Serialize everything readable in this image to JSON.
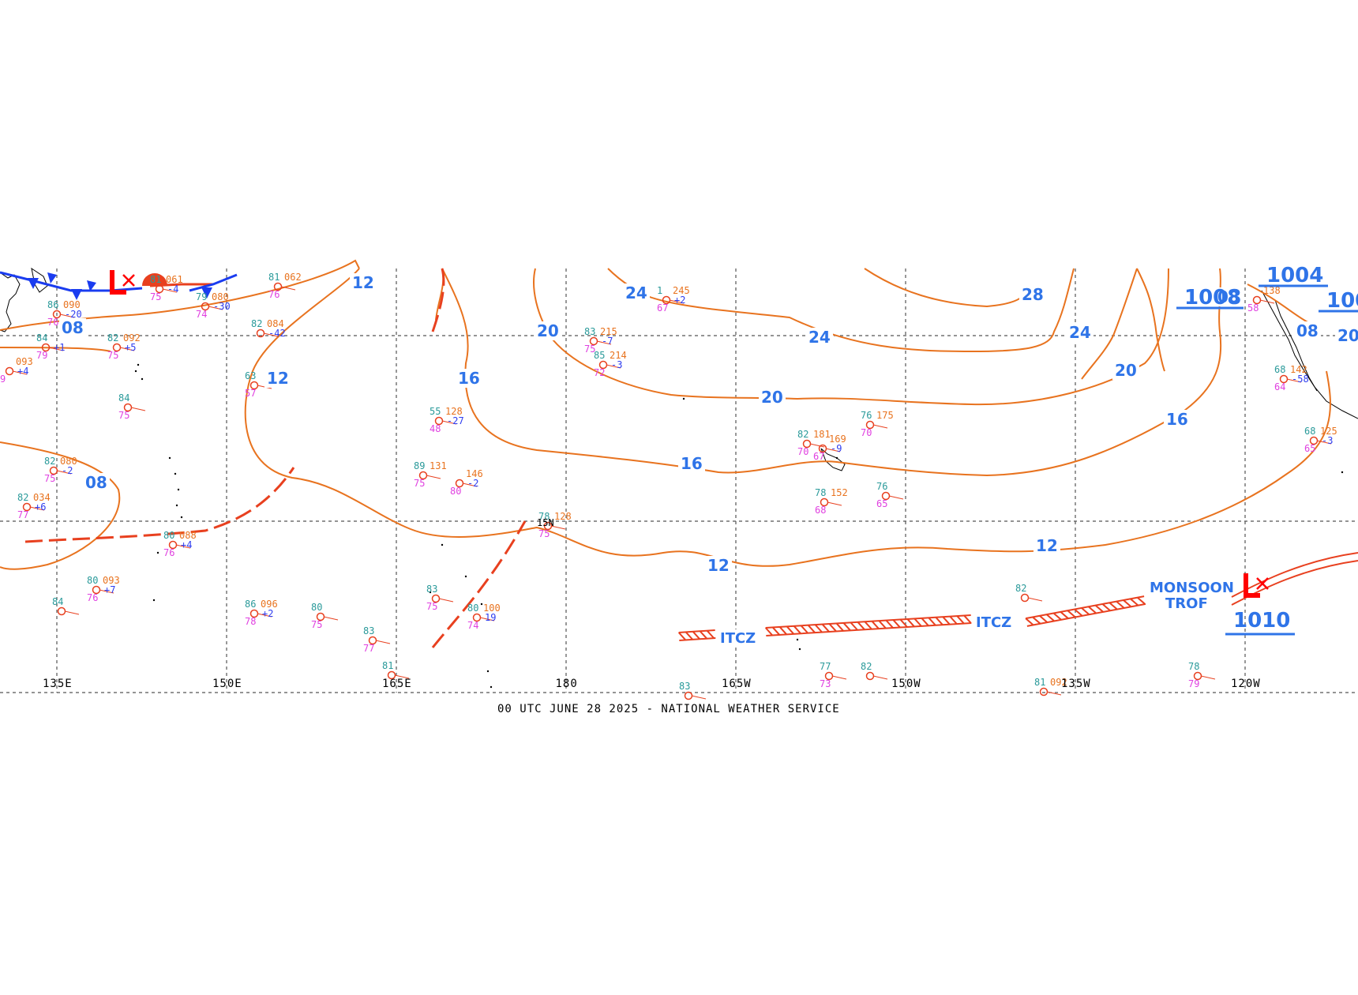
{
  "colors": {
    "isobar": "#e8731f",
    "isobar_label": "#2f74e8",
    "frontal": "#e8401f",
    "cold_front": "#1a3cf0",
    "low_symbol": "#ff0000",
    "grid": "#555555",
    "temp": "#2a9a9a",
    "pressure_obs": "#e8731f",
    "dewpoint": "#e040e0",
    "tendency": "#2d3cf0",
    "cloud": "#000000"
  },
  "map": {
    "longitude_labels": [
      "135E",
      "150E",
      "165E",
      "180",
      "165W",
      "150W",
      "135W",
      "120W"
    ],
    "isobar_labels": [
      "12",
      "08",
      "12",
      "08",
      "16",
      "20",
      "24",
      "24",
      "28",
      "20",
      "16",
      "24",
      "20",
      "16",
      "12",
      "12",
      "08",
      "08",
      "20"
    ],
    "pressure_centers": [
      "1008",
      "1004",
      "100",
      "1010"
    ],
    "features": [
      "ITCZ",
      "ITCZ",
      "MONSOON",
      "TROF"
    ],
    "lat_marker": "15N",
    "low_marker_icon": "low-pressure-icon"
  },
  "stations": [
    {
      "t": "86",
      "p": "090",
      "d": "76",
      "tend": "-20"
    },
    {
      "t": "84",
      "p": "",
      "d": "79",
      "tend": "+1"
    },
    {
      "t": "82",
      "p": "092",
      "d": "75",
      "tend": "+5"
    },
    {
      "t": "81",
      "p": "061",
      "d": "75",
      "tend": "-4"
    },
    {
      "t": "79",
      "p": "080",
      "d": "74",
      "tend": "-30"
    },
    {
      "t": "81",
      "p": "062",
      "d": "76",
      "tend": ""
    },
    {
      "t": "82",
      "p": "084",
      "d": "",
      "tend": "-42"
    },
    {
      "t": "",
      "p": "093",
      "d": "9",
      "tend": "+4"
    },
    {
      "t": "84",
      "p": "",
      "d": "75",
      "tend": ""
    },
    {
      "t": "63",
      "p": "",
      "d": "57",
      "tend": ""
    },
    {
      "t": "82",
      "p": "080",
      "d": "75",
      "tend": "-2"
    },
    {
      "t": "82",
      "p": "034",
      "d": "77",
      "tend": "+6"
    },
    {
      "t": "80",
      "p": "088",
      "d": "76",
      "tend": "+4"
    },
    {
      "t": "80",
      "p": "093",
      "d": "76",
      "tend": "+7"
    },
    {
      "t": "84",
      "p": "",
      "d": "",
      "tend": ""
    },
    {
      "t": "86",
      "p": "096",
      "d": "78",
      "tend": "+2"
    },
    {
      "t": "80",
      "p": "",
      "d": "75",
      "tend": ""
    },
    {
      "t": "83",
      "p": "",
      "d": "77",
      "tend": ""
    },
    {
      "t": "81",
      "p": "",
      "d": "",
      "tend": ""
    },
    {
      "t": "55",
      "p": "128",
      "d": "48",
      "tend": "-27"
    },
    {
      "t": "89",
      "p": "131",
      "d": "75",
      "tend": ""
    },
    {
      "t": "",
      "p": "146",
      "d": "80",
      "tend": "-2"
    },
    {
      "t": "83",
      "p": "",
      "d": "75",
      "tend": ""
    },
    {
      "t": "80",
      "p": "100",
      "d": "74",
      "tend": "19"
    },
    {
      "t": "78",
      "p": "128",
      "d": "75",
      "tend": ""
    },
    {
      "t": "83",
      "p": "215",
      "d": "75",
      "tend": "-7"
    },
    {
      "t": "85",
      "p": "214",
      "d": "72",
      "tend": "-3"
    },
    {
      "t": "1",
      "p": "245",
      "d": "67",
      "tend": "+2"
    },
    {
      "t": "76",
      "p": "175",
      "d": "70",
      "tend": ""
    },
    {
      "t": "82",
      "p": "181",
      "d": "70",
      "tend": ""
    },
    {
      "t": "",
      "p": "169",
      "d": "67",
      "tend": "-9"
    },
    {
      "t": "78",
      "p": "152",
      "d": "68",
      "tend": ""
    },
    {
      "t": "76",
      "p": "",
      "d": "65",
      "tend": ""
    },
    {
      "t": "77",
      "p": "",
      "d": "73",
      "tend": ""
    },
    {
      "t": "82",
      "p": "",
      "d": "",
      "tend": ""
    },
    {
      "t": "83",
      "p": "",
      "d": "",
      "tend": ""
    },
    {
      "t": "82",
      "p": "",
      "d": "",
      "tend": ""
    },
    {
      "t": "81",
      "p": "092",
      "d": "",
      "tend": ""
    },
    {
      "t": "78",
      "p": "",
      "d": "79",
      "tend": ""
    },
    {
      "t": "",
      "p": "138",
      "d": "58",
      "tend": ""
    },
    {
      "t": "68",
      "p": "142",
      "d": "64",
      "tend": "-58"
    },
    {
      "t": "68",
      "p": "125",
      "d": "65",
      "tend": "-3"
    }
  ],
  "footer": "00 UTC JUNE 28 2025 - NATIONAL WEATHER SERVICE"
}
